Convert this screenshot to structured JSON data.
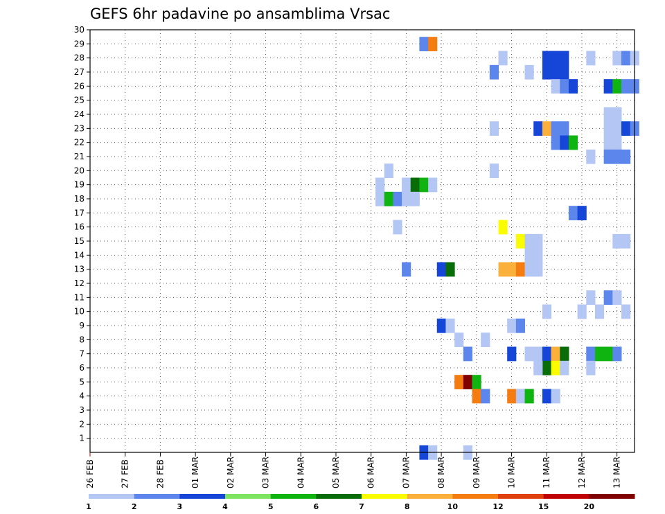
{
  "chart_data": {
    "type": "heatmap",
    "title": "GEFS 6hr padavine po ansamblima Vrsac",
    "xlabel": "",
    "ylabel": "",
    "y_ticks": [
      "1",
      "2",
      "3",
      "4",
      "5",
      "6",
      "7",
      "8",
      "9",
      "10",
      "11",
      "12",
      "13",
      "14",
      "15",
      "16",
      "17",
      "18",
      "19",
      "20",
      "21",
      "22",
      "23",
      "24",
      "25",
      "26",
      "27",
      "28",
      "29",
      "30"
    ],
    "x_ticks": [
      "26 FEB",
      "27 FEB",
      "28 FEB",
      "01 MAR",
      "02 MAR",
      "03 MAR",
      "04 MAR",
      "05 MAR",
      "06 MAR",
      "07 MAR",
      "08 MAR",
      "09 MAR",
      "10 MAR",
      "11 MAR",
      "12 MAR",
      "13 MAR"
    ],
    "xlim_days": [
      0,
      15
    ],
    "ylim_members": [
      0,
      30
    ],
    "grid": "dotted",
    "legend_position": "bottom",
    "legend": {
      "levels": [
        "1",
        "2",
        "3",
        "4",
        "5",
        "6",
        "7",
        "8",
        "10",
        "12",
        "15",
        "20"
      ],
      "colors": [
        "#b4c6f4",
        "#5c86ec",
        "#1646d8",
        "#7ee462",
        "#10b410",
        "#086c08",
        "#fcfc00",
        "#fcb03c",
        "#f47c10",
        "#e04010",
        "#c00000",
        "#800000"
      ]
    },
    "cells": [
      {
        "day": 9.5,
        "member": 29,
        "value": 2
      },
      {
        "day": 9.75,
        "member": 29,
        "value": 10
      },
      {
        "day": 11.75,
        "member": 28,
        "value": 1
      },
      {
        "day": 13.0,
        "member": 28,
        "value": 3
      },
      {
        "day": 13.25,
        "member": 28,
        "value": 3
      },
      {
        "day": 13.5,
        "member": 28,
        "value": 3
      },
      {
        "day": 13.0,
        "member": 27,
        "value": 3
      },
      {
        "day": 13.25,
        "member": 27,
        "value": 3
      },
      {
        "day": 13.5,
        "member": 27,
        "value": 3
      },
      {
        "day": 14.25,
        "member": 28,
        "value": 1
      },
      {
        "day": 15.0,
        "member": 28,
        "value": 1
      },
      {
        "day": 15.25,
        "member": 28,
        "value": 2
      },
      {
        "day": 15.5,
        "member": 28,
        "value": 1
      },
      {
        "day": 11.5,
        "member": 27,
        "value": 2
      },
      {
        "day": 12.5,
        "member": 27,
        "value": 1
      },
      {
        "day": 13.25,
        "member": 26,
        "value": 1
      },
      {
        "day": 13.5,
        "member": 26,
        "value": 2
      },
      {
        "day": 13.75,
        "member": 26,
        "value": 3
      },
      {
        "day": 14.75,
        "member": 26,
        "value": 3
      },
      {
        "day": 15.0,
        "member": 26,
        "value": 5
      },
      {
        "day": 15.25,
        "member": 26,
        "value": 2
      },
      {
        "day": 15.5,
        "member": 26,
        "value": 2
      },
      {
        "day": 14.75,
        "member": 24,
        "value": 1
      },
      {
        "day": 15.0,
        "member": 24,
        "value": 1
      },
      {
        "day": 11.5,
        "member": 23,
        "value": 1
      },
      {
        "day": 12.75,
        "member": 23,
        "value": 3
      },
      {
        "day": 13.0,
        "member": 23,
        "value": 8
      },
      {
        "day": 13.25,
        "member": 23,
        "value": 2
      },
      {
        "day": 13.5,
        "member": 23,
        "value": 2
      },
      {
        "day": 14.75,
        "member": 23,
        "value": 1
      },
      {
        "day": 15.0,
        "member": 23,
        "value": 1
      },
      {
        "day": 15.25,
        "member": 23,
        "value": 3
      },
      {
        "day": 15.5,
        "member": 23,
        "value": 2
      },
      {
        "day": 13.25,
        "member": 22,
        "value": 2
      },
      {
        "day": 13.5,
        "member": 22,
        "value": 3
      },
      {
        "day": 13.75,
        "member": 22,
        "value": 5
      },
      {
        "day": 14.75,
        "member": 22,
        "value": 1
      },
      {
        "day": 15.0,
        "member": 22,
        "value": 1
      },
      {
        "day": 14.25,
        "member": 21,
        "value": 1
      },
      {
        "day": 14.75,
        "member": 21,
        "value": 2
      },
      {
        "day": 15.0,
        "member": 21,
        "value": 2
      },
      {
        "day": 15.25,
        "member": 21,
        "value": 2
      },
      {
        "day": 8.5,
        "member": 20,
        "value": 1
      },
      {
        "day": 11.5,
        "member": 20,
        "value": 1
      },
      {
        "day": 8.25,
        "member": 19,
        "value": 1
      },
      {
        "day": 9.0,
        "member": 19,
        "value": 1
      },
      {
        "day": 9.25,
        "member": 19,
        "value": 6
      },
      {
        "day": 9.5,
        "member": 19,
        "value": 5
      },
      {
        "day": 9.75,
        "member": 19,
        "value": 1
      },
      {
        "day": 8.25,
        "member": 18,
        "value": 1
      },
      {
        "day": 8.5,
        "member": 18,
        "value": 5
      },
      {
        "day": 8.75,
        "member": 18,
        "value": 2
      },
      {
        "day": 9.0,
        "member": 18,
        "value": 1
      },
      {
        "day": 9.25,
        "member": 18,
        "value": 1
      },
      {
        "day": 13.75,
        "member": 17,
        "value": 2
      },
      {
        "day": 14.0,
        "member": 17,
        "value": 3
      },
      {
        "day": 8.75,
        "member": 16,
        "value": 1
      },
      {
        "day": 11.75,
        "member": 16,
        "value": 7
      },
      {
        "day": 12.25,
        "member": 15,
        "value": 7
      },
      {
        "day": 12.5,
        "member": 15,
        "value": 1
      },
      {
        "day": 12.75,
        "member": 15,
        "value": 1
      },
      {
        "day": 15.0,
        "member": 15,
        "value": 1
      },
      {
        "day": 15.25,
        "member": 15,
        "value": 1
      },
      {
        "day": 12.5,
        "member": 14,
        "value": 1
      },
      {
        "day": 12.75,
        "member": 14,
        "value": 1
      },
      {
        "day": 9.0,
        "member": 13,
        "value": 2
      },
      {
        "day": 10.0,
        "member": 13,
        "value": 3
      },
      {
        "day": 10.25,
        "member": 13,
        "value": 6
      },
      {
        "day": 11.75,
        "member": 13,
        "value": 8
      },
      {
        "day": 12.0,
        "member": 13,
        "value": 8
      },
      {
        "day": 12.25,
        "member": 13,
        "value": 10
      },
      {
        "day": 12.5,
        "member": 13,
        "value": 1
      },
      {
        "day": 12.75,
        "member": 13,
        "value": 1
      },
      {
        "day": 14.25,
        "member": 11,
        "value": 1
      },
      {
        "day": 14.75,
        "member": 11,
        "value": 2
      },
      {
        "day": 13.0,
        "member": 10,
        "value": 1
      },
      {
        "day": 14.0,
        "member": 10,
        "value": 1
      },
      {
        "day": 14.5,
        "member": 10,
        "value": 1
      },
      {
        "day": 15.25,
        "member": 10,
        "value": 1
      },
      {
        "day": 15.0,
        "member": 11,
        "value": 1
      },
      {
        "day": 10.0,
        "member": 9,
        "value": 3
      },
      {
        "day": 10.25,
        "member": 9,
        "value": 1
      },
      {
        "day": 12.0,
        "member": 9,
        "value": 1
      },
      {
        "day": 12.25,
        "member": 9,
        "value": 2
      },
      {
        "day": 10.5,
        "member": 8,
        "value": 1
      },
      {
        "day": 11.25,
        "member": 8,
        "value": 1
      },
      {
        "day": 10.75,
        "member": 7,
        "value": 2
      },
      {
        "day": 12.0,
        "member": 7,
        "value": 3
      },
      {
        "day": 12.5,
        "member": 7,
        "value": 1
      },
      {
        "day": 12.75,
        "member": 7,
        "value": 1
      },
      {
        "day": 13.0,
        "member": 7,
        "value": 3
      },
      {
        "day": 13.25,
        "member": 7,
        "value": 8
      },
      {
        "day": 13.5,
        "member": 7,
        "value": 6
      },
      {
        "day": 14.25,
        "member": 7,
        "value": 2
      },
      {
        "day": 14.5,
        "member": 7,
        "value": 5
      },
      {
        "day": 14.75,
        "member": 7,
        "value": 5
      },
      {
        "day": 15.0,
        "member": 7,
        "value": 2
      },
      {
        "day": 13.0,
        "member": 6,
        "value": 6
      },
      {
        "day": 13.25,
        "member": 6,
        "value": 7
      },
      {
        "day": 12.75,
        "member": 6,
        "value": 1
      },
      {
        "day": 13.5,
        "member": 6,
        "value": 1
      },
      {
        "day": 14.25,
        "member": 6,
        "value": 1
      },
      {
        "day": 10.5,
        "member": 5,
        "value": 10
      },
      {
        "day": 10.75,
        "member": 5,
        "value": 20
      },
      {
        "day": 11.0,
        "member": 5,
        "value": 5
      },
      {
        "day": 11.0,
        "member": 4,
        "value": 10
      },
      {
        "day": 11.25,
        "member": 4,
        "value": 2
      },
      {
        "day": 12.0,
        "member": 4,
        "value": 10
      },
      {
        "day": 12.25,
        "member": 4,
        "value": 1
      },
      {
        "day": 12.5,
        "member": 4,
        "value": 5
      },
      {
        "day": 13.0,
        "member": 4,
        "value": 3
      },
      {
        "day": 13.25,
        "member": 4,
        "value": 1
      },
      {
        "day": 9.5,
        "member": 0,
        "value": 3
      },
      {
        "day": 9.75,
        "member": 0,
        "value": 1
      },
      {
        "day": 10.75,
        "member": 0,
        "value": 1
      }
    ]
  }
}
